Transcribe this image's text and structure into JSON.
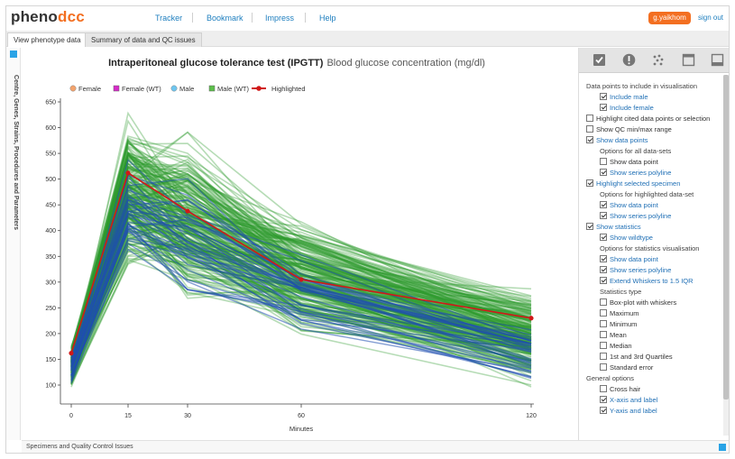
{
  "logo": {
    "part1": "pheno",
    "part2": "dcc"
  },
  "nav": [
    {
      "label": "Tracker"
    },
    {
      "label": "Bookmark"
    },
    {
      "label": "Impress"
    },
    {
      "label": "Help"
    }
  ],
  "user": {
    "name": "g.yaikhom",
    "signout": "sign out"
  },
  "tabs": [
    {
      "label": "View phenotype data",
      "active": true
    },
    {
      "label": "Summary of data and QC issues",
      "active": false
    }
  ],
  "left_panel_label": "Centre, Genes, Strains, Procedures and Parameters",
  "bottom_panel_label": "Specimens and Quality Control Issues",
  "colors": {
    "accent": "#f36f21",
    "link": "#1f7fbf",
    "wildtype": "#2e9a2e",
    "mutant": "#1f4fb0",
    "highlighted": "#d01818",
    "female_marker": "#f4a36c",
    "female_wt_marker": "#d62ac8",
    "male_marker": "#6ec6f0",
    "male_wt_marker": "#5cbf4a"
  },
  "toolbar_icons": [
    "checkbox-icon",
    "alert-icon",
    "scatter-dots-icon",
    "window-icon",
    "panel-bottom-icon"
  ],
  "options": [
    {
      "type": "header",
      "label": "Data points to include in visualisation",
      "indent": 0
    },
    {
      "type": "check",
      "label": "Include male",
      "checked": true,
      "indent": 1,
      "link": true
    },
    {
      "type": "check",
      "label": "Include female",
      "checked": true,
      "indent": 1,
      "link": true
    },
    {
      "type": "check",
      "label": "Highlight cited data points or selection",
      "checked": false,
      "indent": 0,
      "link": false
    },
    {
      "type": "check",
      "label": "Show QC min/max range",
      "checked": false,
      "indent": 0,
      "link": false
    },
    {
      "type": "check",
      "label": "Show data points",
      "checked": true,
      "indent": 0,
      "link": true
    },
    {
      "type": "header",
      "label": "Options for all data-sets",
      "indent": 1
    },
    {
      "type": "check",
      "label": "Show data point",
      "checked": false,
      "indent": 1,
      "link": false
    },
    {
      "type": "check",
      "label": "Show series polyline",
      "checked": true,
      "indent": 1,
      "link": true
    },
    {
      "type": "check",
      "label": "Highlight selected specimen",
      "checked": true,
      "indent": 0,
      "link": true
    },
    {
      "type": "header",
      "label": "Options for highlighted data-set",
      "indent": 1
    },
    {
      "type": "check",
      "label": "Show data point",
      "checked": true,
      "indent": 1,
      "link": true
    },
    {
      "type": "check",
      "label": "Show series polyline",
      "checked": true,
      "indent": 1,
      "link": true
    },
    {
      "type": "check",
      "label": "Show statistics",
      "checked": true,
      "indent": 0,
      "link": true
    },
    {
      "type": "check",
      "label": "Show wildtype",
      "checked": true,
      "indent": 1,
      "link": true
    },
    {
      "type": "header",
      "label": "Options for statistics visualisation",
      "indent": 1
    },
    {
      "type": "check",
      "label": "Show data point",
      "checked": true,
      "indent": 1,
      "link": true
    },
    {
      "type": "check",
      "label": "Show series polyline",
      "checked": true,
      "indent": 1,
      "link": true
    },
    {
      "type": "check",
      "label": "Extend Whiskers to 1.5 IQR",
      "checked": true,
      "indent": 1,
      "link": true
    },
    {
      "type": "header",
      "label": "Statistics type",
      "indent": 1
    },
    {
      "type": "check",
      "label": "Box-plot with whiskers",
      "checked": false,
      "indent": 1,
      "link": false
    },
    {
      "type": "check",
      "label": "Maximum",
      "checked": false,
      "indent": 1,
      "link": false
    },
    {
      "type": "check",
      "label": "Minimum",
      "checked": false,
      "indent": 1,
      "link": false
    },
    {
      "type": "check",
      "label": "Mean",
      "checked": false,
      "indent": 1,
      "link": false
    },
    {
      "type": "check",
      "label": "Median",
      "checked": false,
      "indent": 1,
      "link": false
    },
    {
      "type": "check",
      "label": "1st and 3rd Quartiles",
      "checked": false,
      "indent": 1,
      "link": false
    },
    {
      "type": "check",
      "label": "Standard error",
      "checked": false,
      "indent": 1,
      "link": false
    },
    {
      "type": "header",
      "label": "General options",
      "indent": 0
    },
    {
      "type": "check",
      "label": "Cross hair",
      "checked": false,
      "indent": 1,
      "link": false
    },
    {
      "type": "check",
      "label": "X-axis and label",
      "checked": true,
      "indent": 1,
      "link": true
    },
    {
      "type": "check",
      "label": "Y-axis and label",
      "checked": true,
      "indent": 1,
      "link": true
    }
  ],
  "chart_data": {
    "type": "line",
    "title": "Intraperitoneal glucose tolerance test (IPGTT)",
    "subtitle": "Blood glucose concentration (mg/dl)",
    "xlabel": "Minutes",
    "ylabel": "",
    "x": [
      0,
      15,
      30,
      60,
      120
    ],
    "x_ticks": [
      "0",
      "15",
      "30",
      "60",
      "120"
    ],
    "y_ticks": [
      100,
      150,
      200,
      250,
      300,
      350,
      400,
      450,
      500,
      550,
      600,
      650
    ],
    "ylim": [
      85,
      660
    ],
    "legend": [
      {
        "label": "Female",
        "marker": "circle",
        "color": "#f4a36c"
      },
      {
        "label": "Female (WT)",
        "marker": "square",
        "color": "#d62ac8"
      },
      {
        "label": "Male",
        "marker": "circle",
        "color": "#6ec6f0"
      },
      {
        "label": "Male (WT)",
        "marker": "square",
        "color": "#5cbf4a"
      },
      {
        "label": "Highlighted",
        "marker": "line",
        "color": "#d01818"
      }
    ],
    "legend_position": "top",
    "grid": false,
    "highlighted_series": {
      "name": "Highlighted",
      "values": [
        162,
        512,
        438,
        305,
        230
      ]
    },
    "wildtype_band": {
      "t0": [
        95,
        175
      ],
      "t15": [
        320,
        600
      ],
      "t30": [
        250,
        560
      ],
      "t60": [
        190,
        420
      ],
      "t120": [
        95,
        280
      ]
    },
    "mutant_band": {
      "t0": [
        100,
        160
      ],
      "t15": [
        350,
        520
      ],
      "t30": [
        270,
        480
      ],
      "t60": [
        200,
        350
      ],
      "t120": [
        110,
        210
      ]
    },
    "wildtype_series_count": 220,
    "mutant_series_count": 35
  }
}
